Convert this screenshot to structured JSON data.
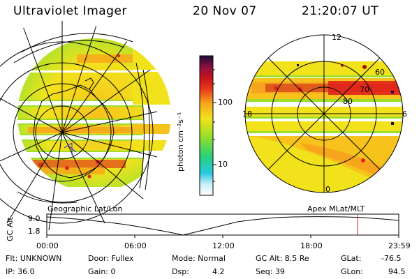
{
  "header": {
    "title": "Ultraviolet Imager",
    "date": "20 Nov 07",
    "time": "21:20:07 UT"
  },
  "left_map": {
    "label": "Geographic Lat/Lon"
  },
  "right_map": {
    "label": "Apex  MLat/MLT",
    "hour_labels": {
      "top": "12",
      "left": "18",
      "right": "6",
      "bottom": "0"
    },
    "lat_labels": [
      "60",
      "70",
      "80"
    ]
  },
  "colorbar": {
    "unit": "photon cm⁻²s⁻¹",
    "ticks": [
      "100",
      "10"
    ]
  },
  "timeline": {
    "ylabel": "GC Alt",
    "y_ticks": [
      "9.0",
      "1.8"
    ],
    "x_ticks": [
      "00:00",
      "06:00",
      "12:00",
      "18:00",
      "23:59"
    ]
  },
  "info": {
    "flt": "Flt: UNKNOWN",
    "ip": "IP: 36.0",
    "door": "Door: Fullex",
    "gain": "Gain:  0",
    "mode": "Mode: Normal",
    "dsp_label": "Dsp:",
    "dsp_value": "4.2",
    "gc_alt": "GC Alt: 8.5 Re",
    "seq": "Seq: 39",
    "glat_label": "GLat:",
    "glat_value": "-76.5",
    "glon_label": "GLon:",
    "glon_value": "94.5"
  },
  "colors": {
    "green": "#9ede2a",
    "yellow": "#f2e21c",
    "orange": "#f7a51c",
    "red": "#e0241c",
    "darkred": "#9c101c",
    "marker": "#cc2222"
  }
}
